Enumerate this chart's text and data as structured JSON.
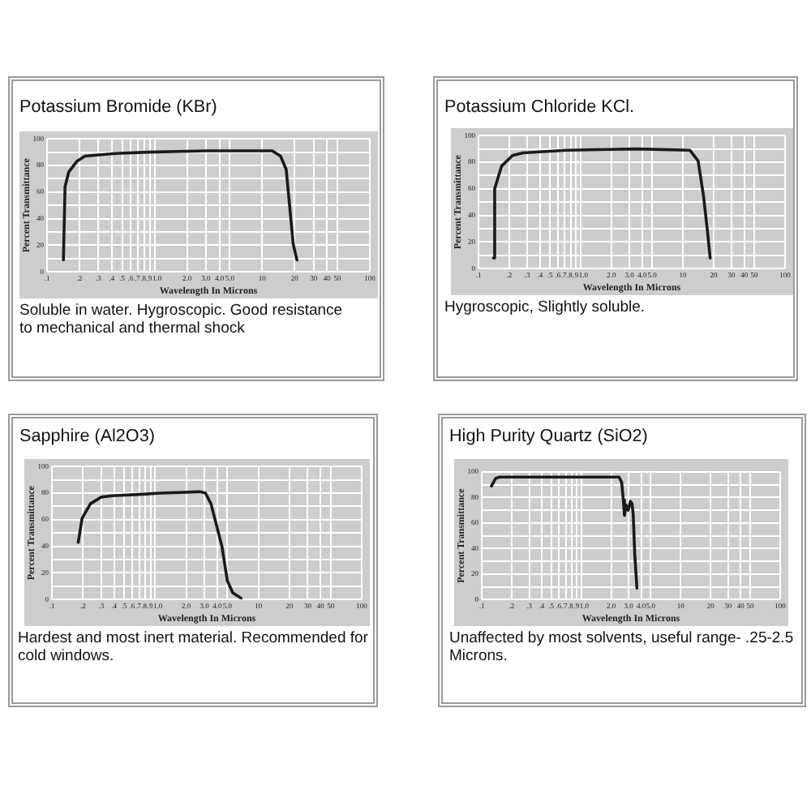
{
  "chart_data": [
    {
      "type": "line",
      "title": "Potassium Bromide (KBr)",
      "xlabel": "Wavelength In Microns",
      "ylabel": "Percent Transmittance",
      "annotations": [
        "Soluble in water. Hygroscopic. Good resistance to mechanical and thermal shock"
      ],
      "x": [
        0.142,
        0.147,
        0.159,
        0.189,
        0.225,
        0.43,
        0.86,
        3,
        12.4,
        14.8,
        16.7,
        18.1,
        19.4,
        21
      ],
      "values": [
        9,
        64,
        75,
        83,
        87,
        89,
        90,
        91,
        91,
        87,
        77,
        47,
        21,
        9
      ],
      "color": "#1a1a1a",
      "xlim": [
        0.1,
        100
      ],
      "ylim": [
        0,
        100
      ],
      "xticks": [
        {
          "value": 0.1,
          "label": ".1"
        },
        {
          "value": 0.2,
          "label": ".2"
        },
        {
          "value": 0.3,
          "label": ".3"
        },
        {
          "value": 0.4,
          "label": ".4"
        },
        {
          "value": 0.5,
          "label": ".5"
        },
        {
          "value": 0.6,
          "label": ".6"
        },
        {
          "value": 0.7,
          "label": ".7"
        },
        {
          "value": 0.8,
          "label": ".8"
        },
        {
          "value": 0.9,
          "label": ".9"
        },
        {
          "value": 1,
          "label": "1.0"
        },
        {
          "value": 2,
          "label": "2.0"
        },
        {
          "value": 3,
          "label": "3.0"
        },
        {
          "value": 4,
          "label": "4.0"
        },
        {
          "value": 5,
          "label": "5.0"
        },
        10,
        20,
        30,
        40,
        50,
        100
      ],
      "yticks": [
        0,
        {
          "value": 10,
          "label": null
        },
        20,
        {
          "value": 30,
          "label": null
        },
        40,
        {
          "value": 50,
          "label": null
        },
        60,
        {
          "value": 70,
          "label": null
        },
        80,
        {
          "value": 90,
          "label": null
        },
        100
      ],
      "log": "x",
      "grid": true
    },
    {
      "type": "line",
      "title": "Potassium Chloride KCl.",
      "xlabel": "Wavelength In Microns",
      "ylabel": "Percent Transmittance",
      "annotations": [
        "Hygroscopic, Slightly soluble."
      ],
      "x": [
        0.14,
        0.144,
        0.168,
        0.215,
        0.273,
        0.72,
        3.5,
        11.7,
        14.1,
        15.9,
        17.3,
        18.5
      ],
      "values": [
        8,
        60,
        77,
        85,
        87,
        89,
        90,
        89,
        81,
        55,
        30,
        8
      ],
      "color": "#1a1a1a",
      "xlim": [
        0.1,
        100
      ],
      "ylim": [
        0,
        100
      ],
      "xticks": [
        {
          "value": 0.1,
          "label": ".1"
        },
        {
          "value": 0.2,
          "label": ".2"
        },
        {
          "value": 0.3,
          "label": ".3"
        },
        {
          "value": 0.4,
          "label": ".4"
        },
        {
          "value": 0.5,
          "label": ".5"
        },
        {
          "value": 0.6,
          "label": ".6"
        },
        {
          "value": 0.7,
          "label": ".7"
        },
        {
          "value": 0.8,
          "label": ".8"
        },
        {
          "value": 0.9,
          "label": ".9"
        },
        {
          "value": 1,
          "label": "1.0"
        },
        {
          "value": 2,
          "label": "2.0"
        },
        {
          "value": 3,
          "label": "3.0"
        },
        {
          "value": 4,
          "label": "4.0"
        },
        {
          "value": 5,
          "label": "5.0"
        },
        10,
        20,
        30,
        40,
        50,
        100
      ],
      "yticks": [
        0,
        {
          "value": 10,
          "label": null
        },
        20,
        {
          "value": 30,
          "label": null
        },
        40,
        {
          "value": 50,
          "label": null
        },
        60,
        {
          "value": 70,
          "label": null
        },
        80,
        {
          "value": 90,
          "label": null
        },
        100
      ],
      "log": "x",
      "grid": true
    },
    {
      "type": "line",
      "title": "Sapphire (Al2O3)",
      "xlabel": "Wavelength In Microns",
      "ylabel": "Percent Transmittance",
      "annotations": [
        "Hardest and most inert material. Recommended for cold windows."
      ],
      "x": [
        0.18,
        0.196,
        0.236,
        0.3,
        0.384,
        0.71,
        1.15,
        2.71,
        3.07,
        3.47,
        4.43,
        5,
        5.65,
        6.78
      ],
      "values": [
        43,
        61,
        72,
        77,
        78,
        79,
        80,
        81,
        80,
        72,
        40,
        14,
        5,
        1
      ],
      "color": "#1a1a1a",
      "xlim": [
        0.1,
        100
      ],
      "ylim": [
        0,
        100
      ],
      "xticks": [
        {
          "value": 0.1,
          "label": ".1"
        },
        {
          "value": 0.2,
          "label": ".2"
        },
        {
          "value": 0.3,
          "label": ".3"
        },
        {
          "value": 0.4,
          "label": ".4"
        },
        {
          "value": 0.5,
          "label": ".5"
        },
        {
          "value": 0.6,
          "label": ".6"
        },
        {
          "value": 0.7,
          "label": ".7"
        },
        {
          "value": 0.8,
          "label": ".8"
        },
        {
          "value": 0.9,
          "label": ".9"
        },
        {
          "value": 1,
          "label": "1.0"
        },
        {
          "value": 2,
          "label": "2.0"
        },
        {
          "value": 3,
          "label": "3.0"
        },
        {
          "value": 4,
          "label": "4.0"
        },
        {
          "value": 5,
          "label": "5.0"
        },
        10,
        20,
        30,
        40,
        50,
        100
      ],
      "yticks": [
        0,
        {
          "value": 10,
          "label": null
        },
        20,
        {
          "value": 30,
          "label": null
        },
        40,
        {
          "value": 50,
          "label": null
        },
        60,
        {
          "value": 70,
          "label": null
        },
        80,
        {
          "value": 90,
          "label": null
        },
        100
      ],
      "log": "x",
      "grid": true
    },
    {
      "type": "line",
      "title": "High Purity Quartz (SiO2)",
      "xlabel": "Wavelength In Microns",
      "ylabel": "Percent Transmittance",
      "annotations": [
        "Unaffected by most solvents, useful range- .25-2.5 Microns."
      ],
      "x": [
        0.125,
        0.138,
        0.151,
        2.4,
        2.55,
        2.65,
        2.72,
        2.82,
        2.97,
        3.12,
        3.24,
        3.33,
        3.45,
        3.63
      ],
      "values": [
        89,
        95,
        96,
        96,
        92,
        78,
        66,
        74,
        70,
        77,
        75,
        67,
        36,
        9
      ],
      "color": "#1a1a1a",
      "xlim": [
        0.1,
        100
      ],
      "ylim": [
        0,
        100
      ],
      "xticks": [
        {
          "value": 0.1,
          "label": ".1"
        },
        {
          "value": 0.2,
          "label": ".2"
        },
        {
          "value": 0.3,
          "label": ".3"
        },
        {
          "value": 0.4,
          "label": ".4"
        },
        {
          "value": 0.5,
          "label": ".5"
        },
        {
          "value": 0.6,
          "label": ".6"
        },
        {
          "value": 0.7,
          "label": ".7"
        },
        {
          "value": 0.8,
          "label": ".8"
        },
        {
          "value": 0.9,
          "label": ".9"
        },
        {
          "value": 1,
          "label": "1.0"
        },
        {
          "value": 2,
          "label": "2.0"
        },
        {
          "value": 3,
          "label": "3.0"
        },
        {
          "value": 4,
          "label": "4.0"
        },
        {
          "value": 5,
          "label": "5.0"
        },
        10,
        20,
        30,
        40,
        50,
        100
      ],
      "yticks": [
        0,
        {
          "value": 10,
          "label": null
        },
        20,
        {
          "value": 30,
          "label": null
        },
        40,
        {
          "value": 50,
          "label": null
        },
        60,
        {
          "value": 70,
          "label": null
        },
        80,
        {
          "value": 90,
          "label": null
        },
        100
      ],
      "log": "x",
      "grid": true
    }
  ]
}
